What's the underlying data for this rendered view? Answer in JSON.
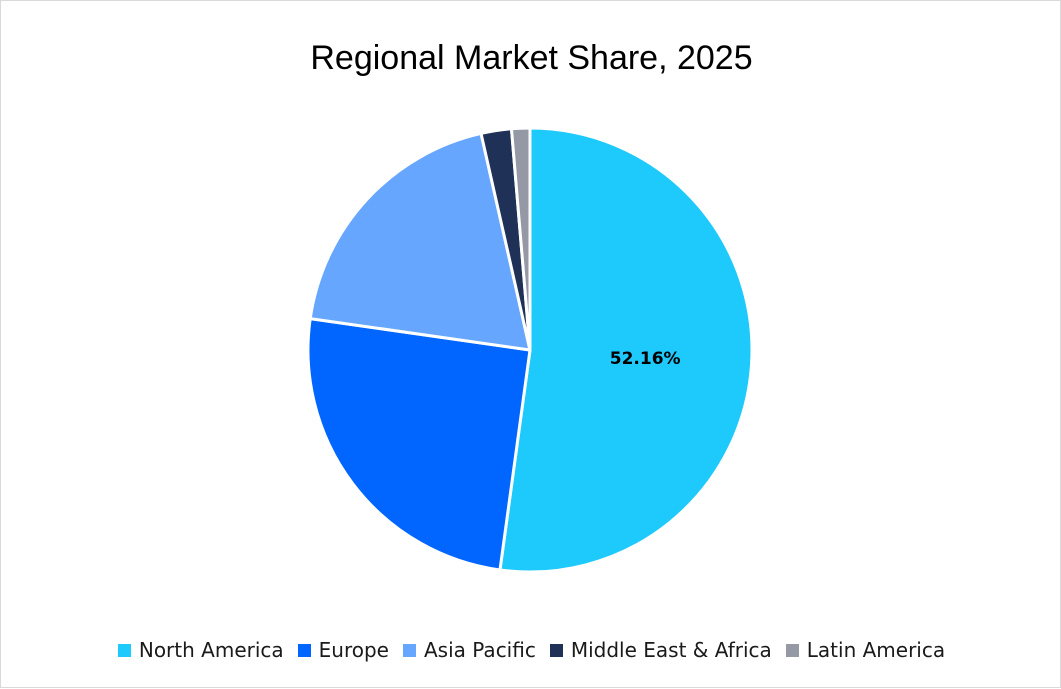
{
  "chart_data": {
    "type": "pie",
    "title": "Regional Market Share, 2025",
    "categories": [
      "North America",
      "Europe",
      "Asia Pacific",
      "Middle East & Africa",
      "Latin America"
    ],
    "values": [
      52.16,
      25.1,
      19.2,
      2.21,
      1.33
    ],
    "colors": [
      "#1ec9fc",
      "#0066ff",
      "#66a6ff",
      "#1f3156",
      "#9499a5"
    ],
    "data_labels": [
      "52.16%",
      "",
      "",
      "",
      ""
    ],
    "start_angle_deg": 0,
    "direction": "clockwise",
    "legend_position": "bottom"
  },
  "legend": [
    {
      "label": "North America",
      "color": "#1ec9fc"
    },
    {
      "label": "Europe",
      "color": "#0066ff"
    },
    {
      "label": "Asia Pacific",
      "color": "#66a6ff"
    },
    {
      "label": "Middle East & Africa",
      "color": "#1f3156"
    },
    {
      "label": "Latin America",
      "color": "#9499a5"
    }
  ]
}
